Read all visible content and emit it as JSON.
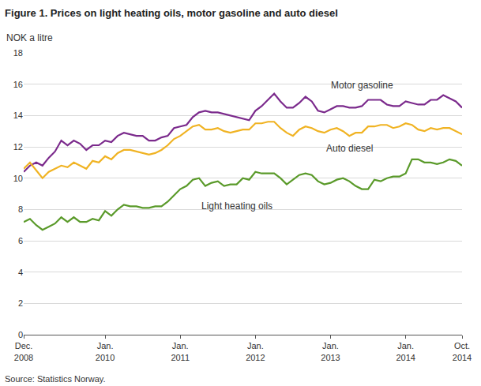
{
  "chart_data": {
    "type": "line",
    "title": "Figure 1. Prices on light heating oils, motor gasoline and auto diesel",
    "y_label": "NOK a litre",
    "source": "Source: Statistics Norway.",
    "categories": [
      "Dec.\n2008",
      null,
      null,
      null,
      null,
      null,
      null,
      null,
      null,
      null,
      null,
      null,
      null,
      "Jan.\n2010",
      null,
      null,
      null,
      null,
      null,
      null,
      null,
      null,
      null,
      null,
      null,
      "Jan.\n2011",
      null,
      null,
      null,
      null,
      null,
      null,
      null,
      null,
      null,
      null,
      null,
      "Jan.\n2012",
      null,
      null,
      null,
      null,
      null,
      null,
      null,
      null,
      null,
      null,
      null,
      "Jan.\n2013",
      null,
      null,
      null,
      null,
      null,
      null,
      null,
      null,
      null,
      null,
      null,
      "Jan.\n2014",
      null,
      null,
      null,
      null,
      null,
      null,
      null,
      null,
      "Oct.\n2014"
    ],
    "series": [
      {
        "name": "Motor gasoline",
        "color": "#7b2a8c",
        "values": [
          10.4,
          10.8,
          11.0,
          10.8,
          11.3,
          11.7,
          12.4,
          12.1,
          12.4,
          12.2,
          11.8,
          12.1,
          12.1,
          12.4,
          12.3,
          12.7,
          12.9,
          12.8,
          12.7,
          12.7,
          12.4,
          12.4,
          12.6,
          12.7,
          13.2,
          13.3,
          13.4,
          13.9,
          14.2,
          14.3,
          14.2,
          14.2,
          14.1,
          14.0,
          13.9,
          13.8,
          13.7,
          14.3,
          14.6,
          15.0,
          15.4,
          14.9,
          14.5,
          14.5,
          14.8,
          15.2,
          14.9,
          14.3,
          14.2,
          14.4,
          14.6,
          14.6,
          14.5,
          14.5,
          14.6,
          15.0,
          15.0,
          15.0,
          14.7,
          14.6,
          14.6,
          14.9,
          14.8,
          14.7,
          14.7,
          15.0,
          15.0,
          15.3,
          15.1,
          14.9,
          14.5
        ]
      },
      {
        "name": "Auto diesel",
        "color": "#f0b323",
        "values": [
          10.6,
          11.0,
          10.5,
          10.0,
          10.4,
          10.6,
          10.8,
          10.7,
          11.0,
          10.8,
          10.6,
          11.1,
          11.0,
          11.4,
          11.2,
          11.6,
          11.8,
          11.8,
          11.7,
          11.6,
          11.5,
          11.6,
          11.8,
          12.1,
          12.5,
          12.7,
          13.0,
          13.3,
          13.4,
          13.1,
          13.1,
          13.2,
          13.0,
          12.9,
          13.0,
          13.1,
          13.1,
          13.5,
          13.5,
          13.6,
          13.6,
          13.2,
          12.9,
          12.7,
          13.1,
          13.3,
          13.2,
          13.0,
          12.9,
          13.1,
          13.2,
          13.0,
          12.7,
          12.9,
          12.9,
          13.3,
          13.3,
          13.4,
          13.4,
          13.2,
          13.3,
          13.5,
          13.4,
          13.1,
          13.0,
          13.2,
          13.1,
          13.2,
          13.2,
          13.0,
          12.8
        ]
      },
      {
        "name": "Light heating oils",
        "color": "#5a9a2a",
        "values": [
          7.2,
          7.4,
          7.0,
          6.7,
          6.9,
          7.1,
          7.5,
          7.2,
          7.5,
          7.2,
          7.2,
          7.4,
          7.3,
          7.9,
          7.6,
          8.0,
          8.3,
          8.2,
          8.2,
          8.1,
          8.1,
          8.2,
          8.2,
          8.5,
          8.9,
          9.3,
          9.5,
          9.9,
          10.0,
          9.5,
          9.7,
          9.8,
          9.5,
          9.6,
          9.6,
          10.0,
          9.9,
          10.4,
          10.3,
          10.3,
          10.3,
          10.0,
          9.6,
          9.9,
          10.2,
          10.3,
          10.2,
          9.8,
          9.6,
          9.7,
          9.9,
          10.0,
          9.8,
          9.5,
          9.3,
          9.3,
          9.9,
          9.8,
          10.0,
          10.1,
          10.1,
          10.3,
          11.2,
          11.2,
          11.0,
          11.0,
          10.9,
          11.0,
          11.2,
          11.1,
          10.8
        ]
      }
    ],
    "ylim": [
      0,
      18
    ],
    "yticks": [
      0,
      2,
      4,
      6,
      8,
      10,
      12,
      14,
      16,
      18
    ],
    "grid": true
  }
}
